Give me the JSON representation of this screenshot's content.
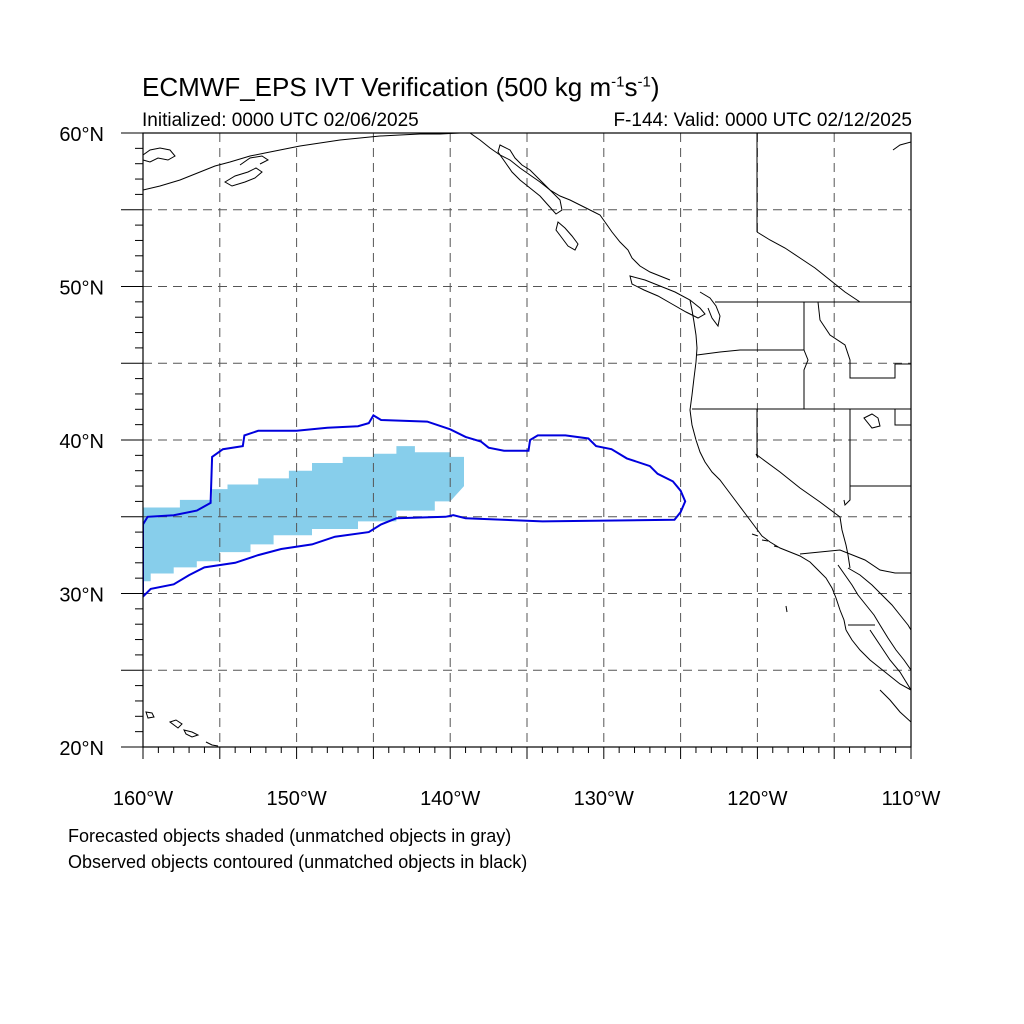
{
  "title": {
    "text": "ECMWF_EPS IVT Verification (500 kg m",
    "exp1": "-1",
    "mid": "s",
    "exp2": "-1",
    "end": ")"
  },
  "subtitle_left": "Initialized: 0000 UTC 02/06/2025",
  "subtitle_right": "F-144: Valid: 0000 UTC 02/12/2025",
  "notes": [
    "Forecasted objects shaded (unmatched objects in gray)",
    "Observed objects contoured (unmatched objects in black)"
  ],
  "map": {
    "lon_range": [
      -160,
      -110
    ],
    "lat_range": [
      20,
      60
    ],
    "lat_labels": [
      "20°N",
      "30°N",
      "40°N",
      "50°N",
      "60°N"
    ],
    "lon_labels": [
      "160°W",
      "150°W",
      "140°W",
      "130°W",
      "120°W",
      "110°W"
    ],
    "grid_lons": [
      -155,
      -150,
      -145,
      -140,
      -135,
      -130,
      -125,
      -120,
      -115
    ],
    "grid_lats": [
      25,
      30,
      35,
      40,
      45,
      50,
      55
    ],
    "colors": {
      "forecast_fill": "#87ceeb",
      "observed_contour": "#0000dd",
      "coastline": "#000000",
      "grid": "#555555"
    },
    "forecast_object": [
      [
        -160,
        35.6
      ],
      [
        -157.6,
        35.6
      ],
      [
        -157.6,
        36.1
      ],
      [
        -155.5,
        36.1
      ],
      [
        -155.5,
        36.8
      ],
      [
        -154.5,
        36.8
      ],
      [
        -154.5,
        37.1
      ],
      [
        -152.5,
        37.1
      ],
      [
        -152.5,
        37.5
      ],
      [
        -150.5,
        37.5
      ],
      [
        -150.5,
        38.0
      ],
      [
        -149.0,
        38.0
      ],
      [
        -149.0,
        38.5
      ],
      [
        -147.0,
        38.5
      ],
      [
        -147.0,
        38.9
      ],
      [
        -145.0,
        38.9
      ],
      [
        -145.0,
        39.1
      ],
      [
        -143.5,
        39.1
      ],
      [
        -143.5,
        39.6
      ],
      [
        -142.3,
        39.6
      ],
      [
        -142.3,
        39.2
      ],
      [
        -140.0,
        39.2
      ],
      [
        -140.0,
        38.9
      ],
      [
        -139.1,
        38.9
      ],
      [
        -139.1,
        37.0
      ],
      [
        -140.0,
        36.0
      ],
      [
        -141.0,
        36.0
      ],
      [
        -141.0,
        35.4
      ],
      [
        -143.5,
        35.4
      ],
      [
        -143.5,
        34.7
      ],
      [
        -146.0,
        34.7
      ],
      [
        -146.0,
        34.2
      ],
      [
        -149.0,
        34.2
      ],
      [
        -149.0,
        33.8
      ],
      [
        -151.5,
        33.8
      ],
      [
        -151.5,
        33.2
      ],
      [
        -153.0,
        33.2
      ],
      [
        -153.0,
        32.7
      ],
      [
        -155.0,
        32.7
      ],
      [
        -155.0,
        32.1
      ],
      [
        -156.5,
        32.1
      ],
      [
        -156.5,
        31.7
      ],
      [
        -158.0,
        31.7
      ],
      [
        -158.0,
        31.3
      ],
      [
        -159.5,
        31.3
      ],
      [
        -159.5,
        30.8
      ],
      [
        -160,
        30.8
      ]
    ],
    "observed_object": [
      [
        -160,
        34.5
      ],
      [
        -159.7,
        35.0
      ],
      [
        -158.0,
        35.1
      ],
      [
        -156.5,
        35.4
      ],
      [
        -155.6,
        35.9
      ],
      [
        -155.5,
        38.9
      ],
      [
        -154.8,
        39.4
      ],
      [
        -153.5,
        39.6
      ],
      [
        -153.4,
        40.3
      ],
      [
        -152.5,
        40.6
      ],
      [
        -150.0,
        40.6
      ],
      [
        -148.0,
        40.8
      ],
      [
        -146.0,
        40.9
      ],
      [
        -145.3,
        41.1
      ],
      [
        -145.0,
        41.6
      ],
      [
        -144.5,
        41.3
      ],
      [
        -141.5,
        41.2
      ],
      [
        -140.0,
        40.7
      ],
      [
        -139.0,
        40.2
      ],
      [
        -138.0,
        39.9
      ],
      [
        -137.5,
        39.5
      ],
      [
        -136.5,
        39.3
      ],
      [
        -134.9,
        39.3
      ],
      [
        -134.8,
        40.0
      ],
      [
        -134.3,
        40.3
      ],
      [
        -132.5,
        40.3
      ],
      [
        -131.0,
        40.1
      ],
      [
        -130.5,
        39.6
      ],
      [
        -129.5,
        39.4
      ],
      [
        -128.5,
        38.8
      ],
      [
        -127.0,
        38.3
      ],
      [
        -126.5,
        37.8
      ],
      [
        -125.5,
        37.3
      ],
      [
        -125.0,
        36.7
      ],
      [
        -124.7,
        36.0
      ],
      [
        -125.0,
        35.3
      ],
      [
        -125.4,
        34.8
      ],
      [
        -134.0,
        34.7
      ],
      [
        -139.0,
        34.9
      ],
      [
        -139.8,
        35.1
      ],
      [
        -140.3,
        35.0
      ],
      [
        -143.5,
        34.9
      ],
      [
        -144.5,
        34.5
      ],
      [
        -145.3,
        34.0
      ],
      [
        -147.5,
        33.7
      ],
      [
        -149.0,
        33.2
      ],
      [
        -151.0,
        32.9
      ],
      [
        -152.5,
        32.5
      ],
      [
        -154.0,
        32.0
      ],
      [
        -156.0,
        31.7
      ],
      [
        -157.0,
        31.2
      ],
      [
        -158.0,
        30.6
      ],
      [
        -159.5,
        30.3
      ],
      [
        -160,
        29.8
      ]
    ]
  }
}
